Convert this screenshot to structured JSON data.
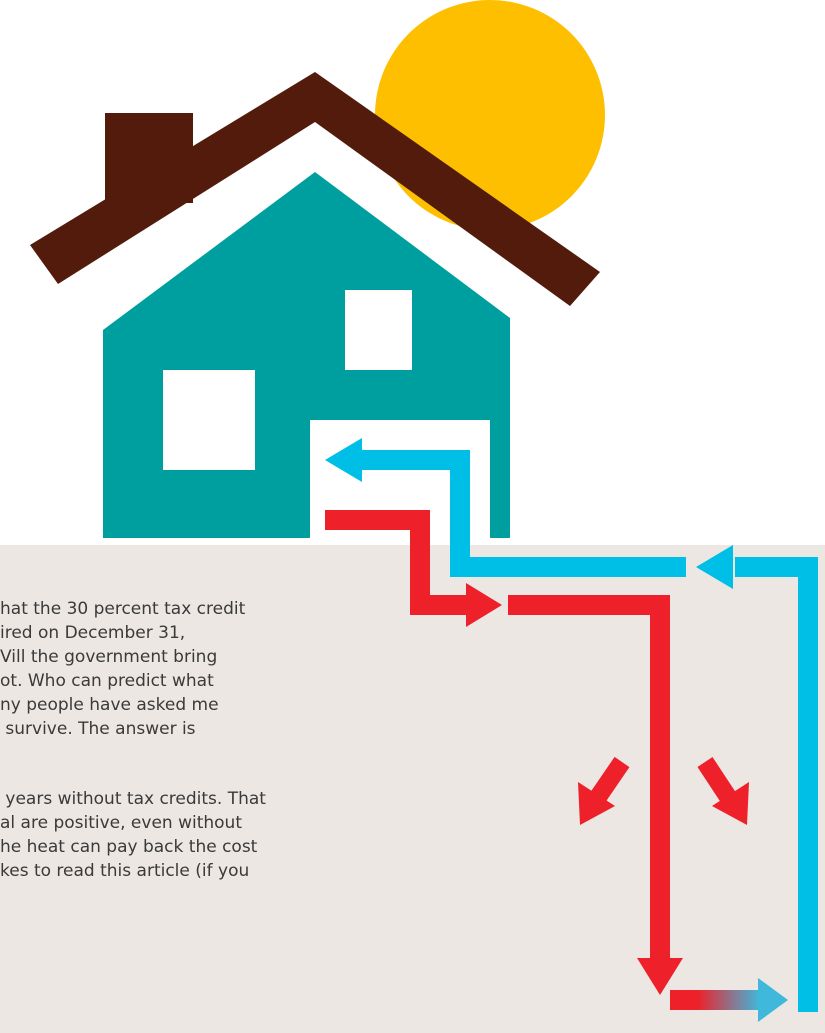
{
  "article": {
    "paragraphs": [
      [
        "hat the 30 percent tax credit",
        "ired on December 31,",
        "Vill the government bring",
        "ot. Who can predict what",
        "ny people have asked me",
        " survive. The answer is"
      ],
      [
        " years without tax credits. That",
        "al are positive, even without",
        "he heat can pay back the cost",
        "kes to read this article (if you"
      ]
    ]
  }
}
